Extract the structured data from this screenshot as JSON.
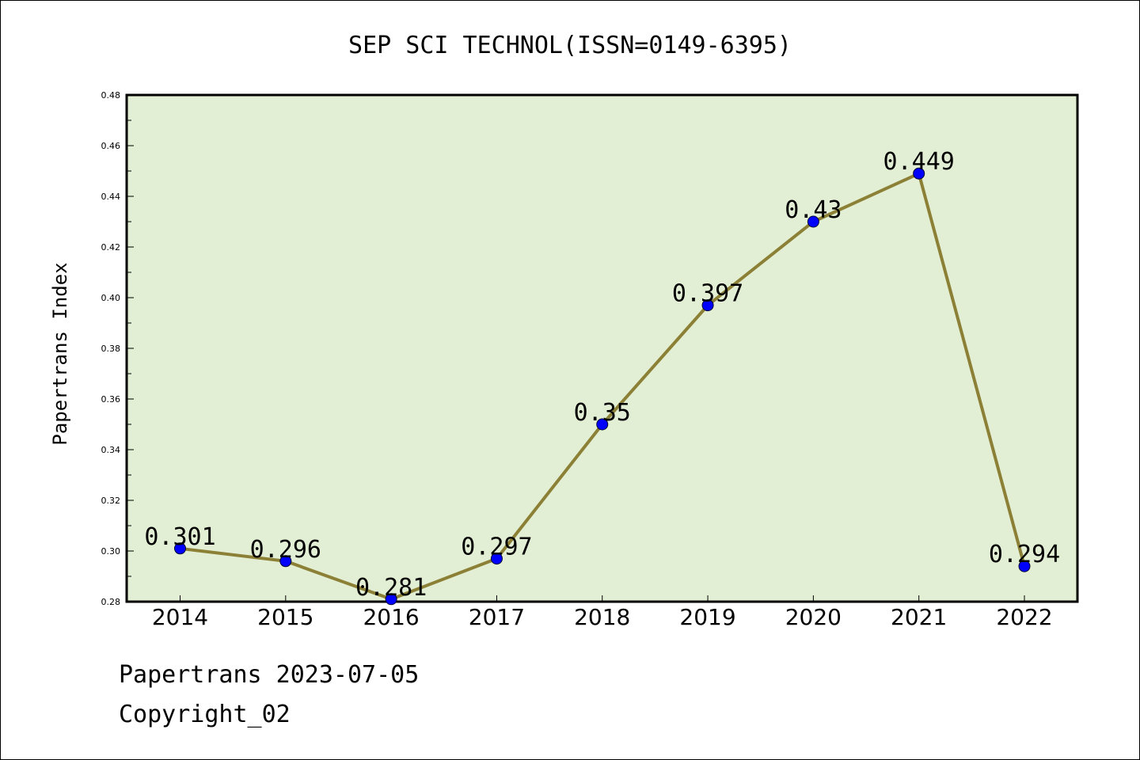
{
  "chart_data": {
    "type": "line",
    "title": "SEP SCI TECHNOL(ISSN=0149-6395)",
    "xlabel": "",
    "ylabel": "Papertrans Index",
    "categories": [
      "2014",
      "2015",
      "2016",
      "2017",
      "2018",
      "2019",
      "2020",
      "2021",
      "2022"
    ],
    "series": [
      {
        "values": [
          0.301,
          0.296,
          0.281,
          0.297,
          0.35,
          0.397,
          0.43,
          0.449,
          0.294
        ],
        "data_labels": [
          "0.301",
          "0.296",
          "0.281",
          "0.297",
          "0.35",
          "0.397",
          "0.43",
          "0.449",
          "0.294"
        ]
      }
    ],
    "ylim": [
      0.28,
      0.48
    ],
    "yticks": [
      "0.28",
      "0.30",
      "0.32",
      "0.34",
      "0.36",
      "0.38",
      "0.40",
      "0.42",
      "0.44",
      "0.46",
      "0.48"
    ],
    "grid": false,
    "legend": "none"
  },
  "colors": {
    "plot_background": "#e2efd4",
    "line": "#8b8035",
    "marker": "#0000ff",
    "axis": "#000000"
  },
  "footer": {
    "line1": "Papertrans 2023-07-05",
    "line2": "Copyright_02"
  }
}
